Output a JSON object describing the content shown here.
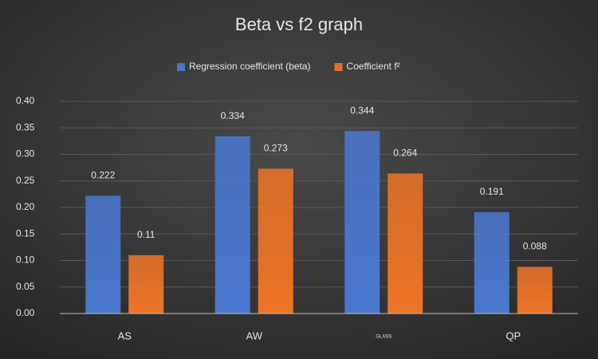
{
  "chart_data": {
    "type": "bar",
    "title": "Beta vs f2 graph",
    "categories": [
      "AS",
      "AW",
      "GLASS",
      "QP"
    ],
    "series": [
      {
        "name": "Regression coefficient (beta)",
        "color": "#4a78d0",
        "values": [
          0.222,
          0.334,
          0.344,
          0.191
        ]
      },
      {
        "name": "Coefficient f²",
        "color": "#ee7426",
        "values": [
          0.11,
          0.273,
          0.264,
          0.088
        ]
      }
    ],
    "ylim": [
      0,
      0.4
    ],
    "yticks": [
      {
        "value": 0,
        "label": "0.00"
      },
      {
        "value": 0.05,
        "label": "0.05"
      },
      {
        "value": 0.1,
        "label": "0.10"
      },
      {
        "value": 0.15,
        "label": "0.15"
      },
      {
        "value": 0.2,
        "label": "0.20"
      },
      {
        "value": 0.25,
        "label": "0.25"
      },
      {
        "value": 0.3,
        "label": "0.30"
      },
      {
        "value": 0.35,
        "label": "0.35"
      },
      {
        "value": 0.4,
        "label": "0.40"
      }
    ],
    "grid": true,
    "legend": "top"
  }
}
